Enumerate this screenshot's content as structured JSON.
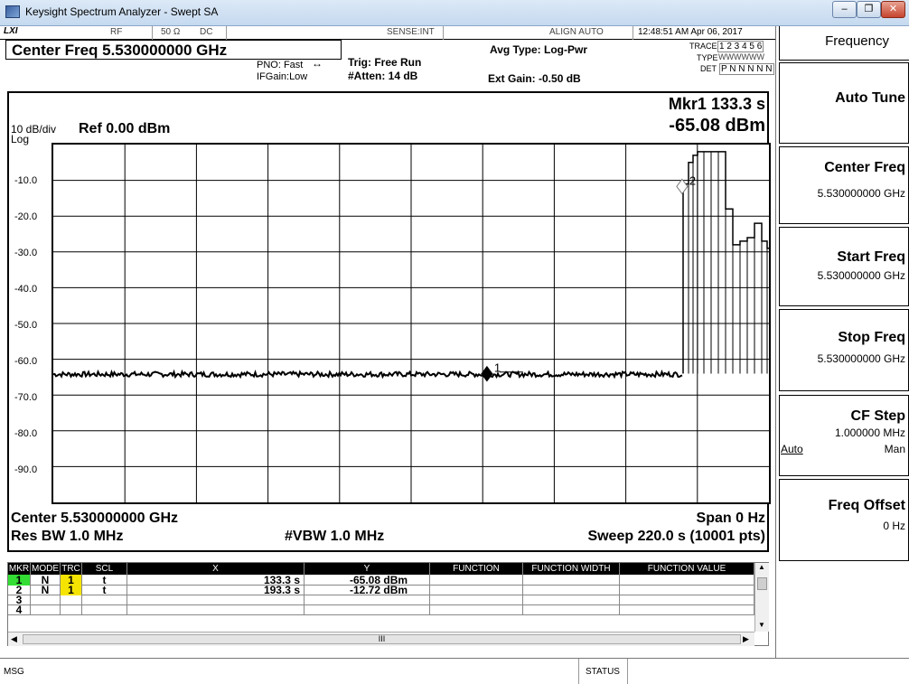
{
  "window": {
    "title": "Keysight Spectrum Analyzer - Swept SA",
    "minimize_glyph": "–",
    "maximize_glyph": "❐",
    "close_glyph": "✕"
  },
  "status_row": {
    "logo": "LXI",
    "rf": "RF",
    "impedance": "50 Ω",
    "coupling": "DC",
    "sense": "SENSE:INT",
    "align": "ALIGN AUTO",
    "datetime": "12:48:51 AM Apr 06, 2017"
  },
  "header": {
    "center_freq": "Center Freq 5.530000000 GHz",
    "pno": "PNO: Fast",
    "ifgain": "IFGain:Low",
    "trig": "Trig: Free Run",
    "atten": "#Atten: 14 dB",
    "avg_type": "Avg Type: Log-Pwr",
    "ext_gain": "Ext Gain: -0.50 dB",
    "trace_label": "TRACE",
    "trace_nums": "1 2 3 4 5 6",
    "type_label": "TYPE",
    "type_values": "WWWWWW",
    "det_label": "DET",
    "det_values": "P N N N N N"
  },
  "display": {
    "scale": "10 dB/div",
    "scale_type": "Log",
    "ref": "Ref 0.00 dBm",
    "marker_readout_time": "Mkr1 133.3 s",
    "marker_readout_level": "-65.08 dBm",
    "y_labels": [
      "-10.0",
      "-20.0",
      "-30.0",
      "-40.0",
      "-50.0",
      "-60.0",
      "-70.0",
      "-80.0",
      "-90.0"
    ],
    "center": "Center 5.530000000 GHz",
    "span": "Span 0 Hz",
    "res_bw": "Res BW 1.0 MHz",
    "vbw": "#VBW 1.0 MHz",
    "sweep": "Sweep  220.0 s (10001 pts)",
    "marker1_label": "1",
    "marker2_label": "2"
  },
  "marker_table": {
    "headers": [
      "MKR",
      "MODE",
      "TRC",
      "SCL",
      "X",
      "Y",
      "FUNCTION",
      "FUNCTION WIDTH",
      "FUNCTION VALUE"
    ],
    "rows": [
      {
        "mkr": "1",
        "mode": "N",
        "trc": "1",
        "scl": "t",
        "x": "133.3 s",
        "y": "-65.08 dBm"
      },
      {
        "mkr": "2",
        "mode": "N",
        "trc": "1",
        "scl": "t",
        "x": "193.3 s",
        "y": "-12.72 dBm"
      },
      {
        "mkr": "3",
        "mode": "",
        "trc": "",
        "scl": "",
        "x": "",
        "y": ""
      },
      {
        "mkr": "4",
        "mode": "",
        "trc": "",
        "scl": "",
        "x": "",
        "y": ""
      }
    ],
    "scroll_mark": "III"
  },
  "softkeys": {
    "menu_title": "Frequency",
    "auto_tune": "Auto Tune",
    "center_freq": "Center Freq",
    "center_freq_val": "5.530000000 GHz",
    "start_freq": "Start Freq",
    "start_freq_val": "5.530000000 GHz",
    "stop_freq": "Stop Freq",
    "stop_freq_val": "5.530000000 GHz",
    "cf_step": "CF Step",
    "cf_step_val": "1.000000 MHz",
    "cf_step_auto": "Auto",
    "cf_step_man": "Man",
    "freq_offset": "Freq Offset",
    "freq_offset_val": "0 Hz"
  },
  "message_bar": {
    "msg": "MSG",
    "status": "STATUS"
  },
  "colors": {
    "marker1_highlight": "#33dd33",
    "trace1_yellow": "#f5e400",
    "titlebar": "#c5d9ef"
  },
  "icons": [
    "app-icon",
    "minimize-icon",
    "maximize-icon",
    "close-icon",
    "marker1-diamond-icon",
    "marker2-diamond-icon"
  ]
}
